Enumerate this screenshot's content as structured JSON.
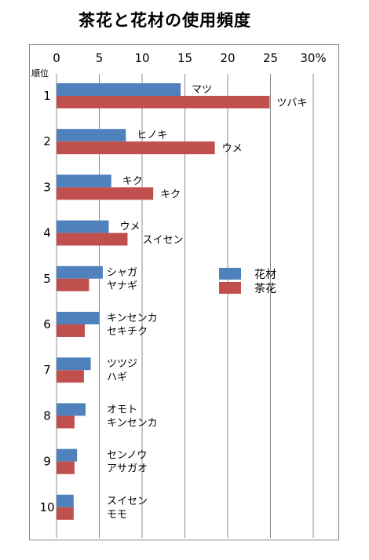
{
  "title": "茶花と花材の使用頻度",
  "chart_data": {
    "type": "bar",
    "orientation": "horizontal",
    "title": "茶花と花材の使用頻度",
    "rank_header": "順位",
    "x_ticks": [
      "0",
      "5",
      "10",
      "15",
      "20",
      "25",
      "30%"
    ],
    "xlim": [
      0,
      30
    ],
    "grid": true,
    "legend_position": "right",
    "categories": [
      "1",
      "2",
      "3",
      "4",
      "5",
      "6",
      "7",
      "8",
      "9",
      "10"
    ],
    "series": [
      {
        "name": "花材",
        "color": "#4f81bd",
        "values": [
          14.5,
          8.1,
          6.4,
          6.1,
          5.4,
          5.0,
          4.0,
          3.4,
          2.4,
          2.0
        ],
        "labels": [
          "マツ",
          "ヒノキ",
          "キク",
          "ウメ",
          "シャガ",
          "キンセンカ",
          "ツツジ",
          "オモト",
          "センノウ",
          "スイセン"
        ]
      },
      {
        "name": "茶花",
        "color": "#c0504d",
        "values": [
          24.9,
          18.5,
          11.3,
          8.3,
          3.8,
          3.3,
          3.2,
          2.1,
          2.1,
          2.0
        ],
        "labels": [
          "ツバキ",
          "ウメ",
          "キク",
          "スイセン",
          "ヤナギ",
          "セキチク",
          "ハギ",
          "キンセンカ",
          "アサガオ",
          "モモ"
        ]
      }
    ]
  }
}
